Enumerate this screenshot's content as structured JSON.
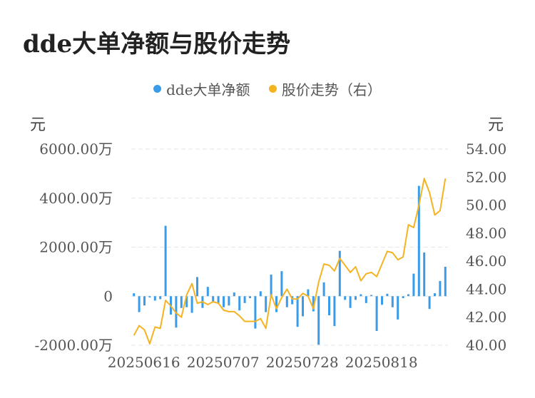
{
  "title": "dde大单净额与股价走势",
  "legend": {
    "series1": "dde大单净额",
    "series2": "股价走势（右）"
  },
  "units": {
    "left": "元",
    "right": "元"
  },
  "colors": {
    "bars": "#3a9be8",
    "line": "#f5b321",
    "grid": "#e6e6e6"
  },
  "chart_data": {
    "type": "bar+line",
    "title": "dde大单净额与股价走势",
    "x_tick_labels": [
      "20250616",
      "20250707",
      "20250728",
      "20250818"
    ],
    "y_left_ticks": [
      "-2000.00万",
      "0",
      "2000.00万",
      "4000.00万",
      "6000.00万"
    ],
    "y_left_range": [
      -2000,
      6000
    ],
    "y_right_ticks": [
      "40.00",
      "42.00",
      "44.00",
      "46.00",
      "48.00",
      "50.00",
      "52.00",
      "54.00"
    ],
    "y_right_range": [
      40,
      54
    ],
    "series": [
      {
        "name": "dde大单净额",
        "type": "bar",
        "values": [
          120,
          -650,
          -380,
          -50,
          -180,
          -120,
          2870,
          -750,
          -1280,
          -480,
          -450,
          -680,
          780,
          -480,
          380,
          -250,
          -280,
          -450,
          -380,
          150,
          -580,
          -280,
          -80,
          -1320,
          200,
          -650,
          880,
          -650,
          1020,
          -450,
          -330,
          -1250,
          -820,
          280,
          -620,
          -1980,
          560,
          -780,
          -1220,
          1850,
          -150,
          -480,
          -150,
          80,
          -280,
          50,
          -1420,
          -350,
          100,
          -450,
          -950,
          -80,
          80,
          920,
          4500,
          1780,
          -520,
          120,
          620,
          1200
        ]
      },
      {
        "name": "股价走势（右）",
        "type": "line",
        "values": [
          40.7,
          41.4,
          41.1,
          40.1,
          41.3,
          41.2,
          43.2,
          42.8,
          42.3,
          42.0,
          43.6,
          44.4,
          43.0,
          43.1,
          42.9,
          43.1,
          43.0,
          42.5,
          42.4,
          42.4,
          42.1,
          41.7,
          41.7,
          41.7,
          41.9,
          41.2,
          43.6,
          42.6,
          43.4,
          44.0,
          43.3,
          43.3,
          43.7,
          43.5,
          42.6,
          44.5,
          45.8,
          45.7,
          45.3,
          46.2,
          45.7,
          45.2,
          45.6,
          44.6,
          45.1,
          45.2,
          44.9,
          45.8,
          46.7,
          46.6,
          46.1,
          46.3,
          48.6,
          48.4,
          50.0,
          51.9,
          50.9,
          49.3,
          49.6,
          51.9
        ]
      }
    ],
    "grid": true,
    "legend_position": "top"
  }
}
